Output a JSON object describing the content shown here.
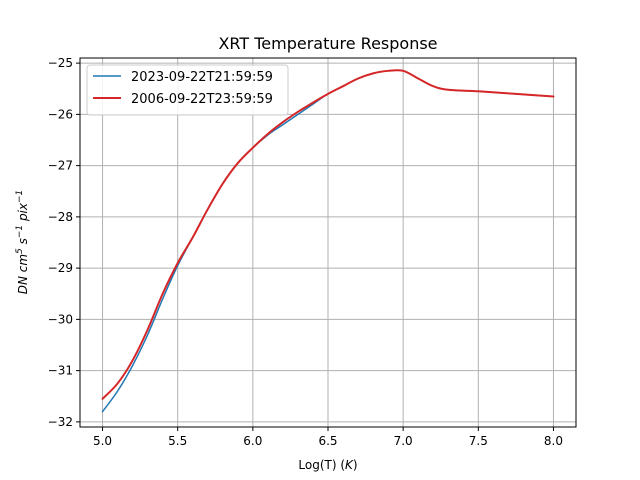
{
  "chart_data": {
    "type": "line",
    "title": "XRT Temperature Response",
    "xlabel_prefix": "Log(T) (",
    "xlabel_unit": "K",
    "xlabel_suffix": ")",
    "ylabel": "DN cm^5 s^-1 pix^-1",
    "xlim": [
      4.85,
      8.15
    ],
    "ylim": [
      -32.1,
      -24.9
    ],
    "xticks": [
      5.0,
      5.5,
      6.0,
      6.5,
      7.0,
      7.5,
      8.0
    ],
    "xtick_labels": [
      "5.0",
      "5.5",
      "6.0",
      "6.5",
      "7.0",
      "7.5",
      "8.0"
    ],
    "yticks": [
      -32,
      -31,
      -30,
      -29,
      -28,
      -27,
      -26,
      -25
    ],
    "ytick_labels": [
      "−32",
      "−31",
      "−30",
      "−29",
      "−28",
      "−27",
      "−26",
      "−25"
    ],
    "grid": true,
    "legend_position": "upper-left",
    "series": [
      {
        "name": "2023-09-22T21:59:59",
        "color": "#1f77b4",
        "x": [
          5.0,
          5.1,
          5.2,
          5.3,
          5.4,
          5.5,
          5.6,
          5.7,
          5.8,
          5.9,
          6.0,
          6.1,
          6.2,
          6.3,
          6.4,
          6.5,
          6.6,
          6.7,
          6.8,
          6.9,
          7.0,
          7.1,
          7.2,
          7.3,
          7.5,
          7.75,
          8.0
        ],
        "y": [
          -31.8,
          -31.4,
          -30.9,
          -30.3,
          -29.6,
          -28.95,
          -28.4,
          -27.85,
          -27.35,
          -26.95,
          -26.65,
          -26.4,
          -26.2,
          -26.0,
          -25.8,
          -25.6,
          -25.45,
          -25.3,
          -25.2,
          -25.15,
          -25.15,
          -25.3,
          -25.45,
          -25.52,
          -25.55,
          -25.6,
          -25.65
        ]
      },
      {
        "name": "2006-09-22T23:59:59",
        "color": "#d62728",
        "x": [
          5.0,
          5.1,
          5.2,
          5.3,
          5.4,
          5.5,
          5.6,
          5.7,
          5.8,
          5.9,
          6.0,
          6.1,
          6.2,
          6.3,
          6.4,
          6.5,
          6.6,
          6.7,
          6.8,
          6.9,
          7.0,
          7.1,
          7.2,
          7.3,
          7.5,
          7.75,
          8.0
        ],
        "y": [
          -31.55,
          -31.25,
          -30.8,
          -30.2,
          -29.5,
          -28.9,
          -28.4,
          -27.85,
          -27.35,
          -26.95,
          -26.65,
          -26.38,
          -26.15,
          -25.95,
          -25.77,
          -25.6,
          -25.45,
          -25.3,
          -25.2,
          -25.15,
          -25.15,
          -25.3,
          -25.45,
          -25.52,
          -25.55,
          -25.6,
          -25.65
        ]
      }
    ]
  }
}
